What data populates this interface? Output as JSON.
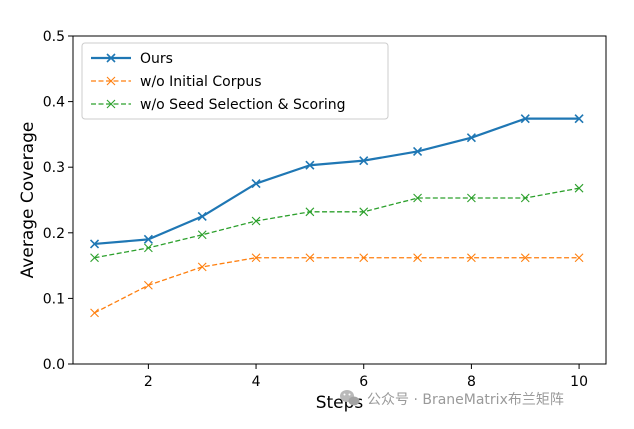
{
  "chart_data": {
    "type": "line",
    "xlabel": "Steps",
    "ylabel": "Average Coverage",
    "xlim": [
      0.6,
      10.5
    ],
    "ylim": [
      0.0,
      0.5
    ],
    "x_ticks": [
      2,
      4,
      6,
      8,
      10
    ],
    "y_ticks": [
      0.0,
      0.1,
      0.2,
      0.3,
      0.4,
      0.5
    ],
    "x_tick_labels": [
      "2",
      "4",
      "6",
      "8",
      "10"
    ],
    "y_tick_labels": [
      "0.0",
      "0.1",
      "0.2",
      "0.3",
      "0.4",
      "0.5"
    ],
    "grid": false,
    "legend_position": "top-left",
    "x": [
      1,
      2,
      3,
      4,
      5,
      6,
      7,
      8,
      9,
      10
    ],
    "series": [
      {
        "name": "Ours",
        "color": "#1f77b4",
        "line_style": "solid",
        "marker": "x",
        "values": [
          0.183,
          0.19,
          0.225,
          0.275,
          0.303,
          0.31,
          0.324,
          0.345,
          0.374,
          0.374
        ]
      },
      {
        "name": "w/o Initial Corpus",
        "color": "#ff7f0e",
        "line_style": "dashed",
        "marker": "x",
        "values": [
          0.078,
          0.12,
          0.148,
          0.162,
          0.162,
          0.162,
          0.162,
          0.162,
          0.162,
          0.162
        ]
      },
      {
        "name": "w/o Seed Selection & Scoring",
        "color": "#2ca02c",
        "line_style": "dashed",
        "marker": "x",
        "values": [
          0.162,
          0.177,
          0.197,
          0.218,
          0.232,
          0.232,
          0.253,
          0.253,
          0.253,
          0.268
        ]
      }
    ]
  },
  "watermark": {
    "icon": "wechat-icon",
    "text": "公众号 · BraneMatrix布兰矩阵"
  }
}
